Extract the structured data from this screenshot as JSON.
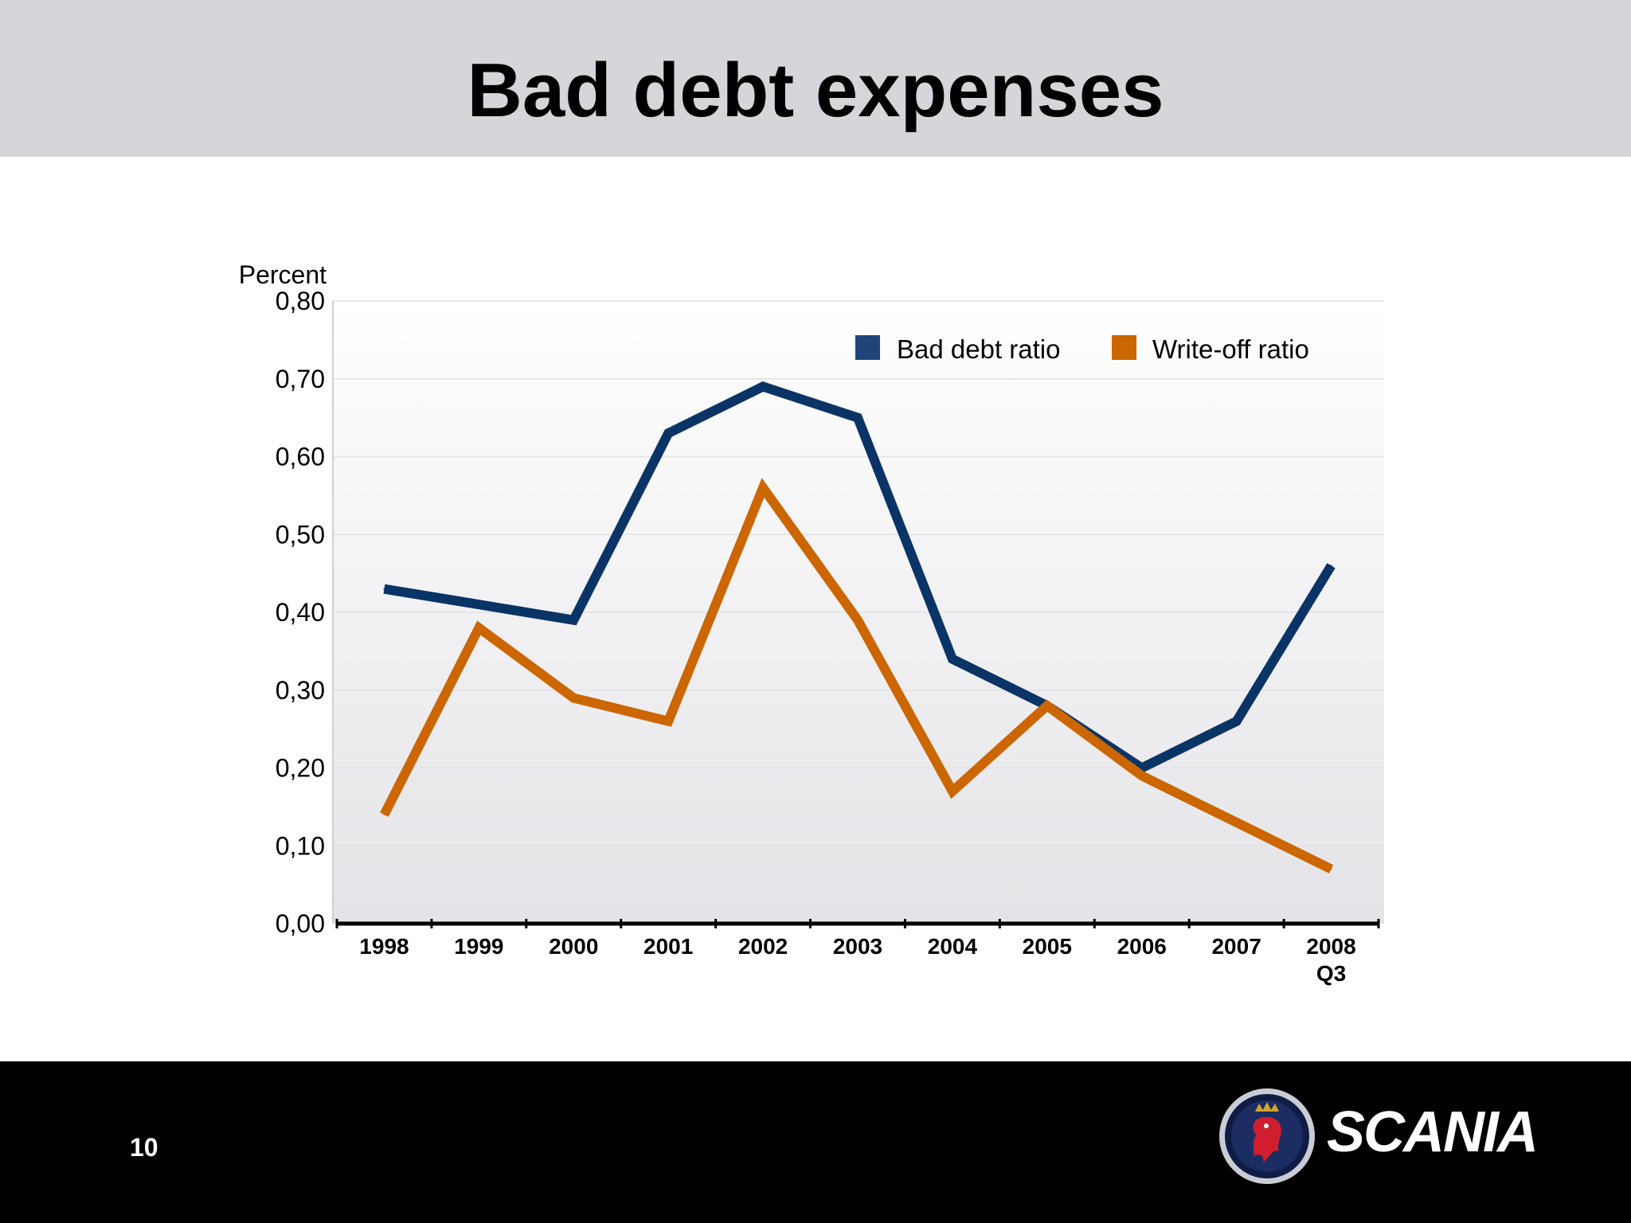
{
  "slide": {
    "title": "Bad debt expenses",
    "page_number": "10",
    "logo_text": "SCANIA"
  },
  "colors": {
    "header_bg": "#d5d6d9",
    "footer_bg": "#000000",
    "bad_debt": "#0b3466",
    "write_off": "#cc6600"
  },
  "chart_data": {
    "type": "line",
    "ylabel": "Percent",
    "ylim": [
      0,
      0.8
    ],
    "yticks": [
      "0,00",
      "0,10",
      "0,20",
      "0,30",
      "0,40",
      "0,50",
      "0,60",
      "0,70",
      "0,80"
    ],
    "categories": [
      "1998",
      "1999",
      "2000",
      "2001",
      "2002",
      "2003",
      "2004",
      "2005",
      "2006",
      "2007",
      "2008\nQ3"
    ],
    "series": [
      {
        "name": "Bad debt ratio",
        "color": "#0b3466",
        "legend_swatch": "#1f4578",
        "values": [
          0.43,
          0.41,
          0.39,
          0.63,
          0.69,
          0.65,
          0.34,
          0.28,
          0.2,
          0.26,
          0.46
        ]
      },
      {
        "name": "Write-off ratio",
        "color": "#cc6600",
        "legend_swatch": "#cc6600",
        "values": [
          0.14,
          0.38,
          0.29,
          0.26,
          0.56,
          0.39,
          0.17,
          0.28,
          0.19,
          0.13,
          0.07
        ]
      }
    ],
    "grid": true,
    "legend_position": "top-right"
  }
}
